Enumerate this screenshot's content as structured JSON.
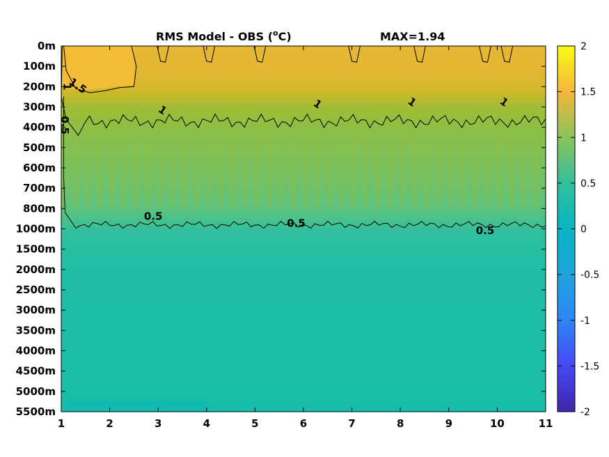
{
  "chart_data": {
    "type": "heatmap",
    "title_left": "RMS Model - OBS (",
    "title_unit_sup": "o",
    "title_unit_c": "C)",
    "title_max": "MAX=1.94",
    "x": [
      1,
      2,
      3,
      4,
      5,
      6,
      7,
      8,
      9,
      10,
      11
    ],
    "xlim": [
      1,
      11
    ],
    "x_tick_labels": [
      "1",
      "2",
      "3",
      "4",
      "5",
      "6",
      "7",
      "8",
      "9",
      "10",
      "11"
    ],
    "y_tick_labels": [
      "0m",
      "100m",
      "200m",
      "300m",
      "400m",
      "500m",
      "600m",
      "700m",
      "800m",
      "1000m",
      "1500m",
      "2000m",
      "2500m",
      "3000m",
      "3500m",
      "4000m",
      "4500m",
      "5000m",
      "5500m"
    ],
    "colorbar": {
      "limits": [
        -2,
        2
      ],
      "ticks": [
        2,
        1.5,
        1,
        0.5,
        0,
        -0.5,
        -1,
        -1.5,
        -2
      ],
      "tick_labels": [
        "2",
        "1.5",
        "1",
        "0.5",
        "0",
        "-0.5",
        "-1",
        "-1.5",
        "-2"
      ],
      "colormap": "parula"
    },
    "depth_profile_rms": [
      {
        "depth": "0m",
        "value": 1.4
      },
      {
        "depth": "100m",
        "value": 1.4
      },
      {
        "depth": "200m",
        "value": 1.3
      },
      {
        "depth": "300m",
        "value": 1.05
      },
      {
        "depth": "400m",
        "value": 0.95
      },
      {
        "depth": "500m",
        "value": 0.9
      },
      {
        "depth": "600m",
        "value": 0.85
      },
      {
        "depth": "700m",
        "value": 0.8
      },
      {
        "depth": "800m",
        "value": 0.7
      },
      {
        "depth": "1000m",
        "value": 0.5
      },
      {
        "depth": "1500m",
        "value": 0.35
      },
      {
        "depth": "2000m",
        "value": 0.3
      },
      {
        "depth": "2500m",
        "value": 0.3
      },
      {
        "depth": "3000m",
        "value": 0.28
      },
      {
        "depth": "3500m",
        "value": 0.28
      },
      {
        "depth": "4000m",
        "value": 0.27
      },
      {
        "depth": "4500m",
        "value": 0.27
      },
      {
        "depth": "5000m",
        "value": 0.25
      },
      {
        "depth": "5500m",
        "value": 0.2
      }
    ],
    "contours": [
      {
        "level": 1.5,
        "label": "1.5"
      },
      {
        "level": 1,
        "label": "1"
      },
      {
        "level": 0.5,
        "label": "0.5"
      }
    ],
    "contour_labels": [
      {
        "text": "1.5",
        "x": 1.3,
        "depth_index": 2.1
      },
      {
        "text": "1",
        "x": 1.05,
        "depth_index": 2.0
      },
      {
        "text": "0.5",
        "x": 1.0,
        "depth_index": 3.9
      },
      {
        "text": "1",
        "x": 3.05,
        "depth_index": 3.3
      },
      {
        "text": "1",
        "x": 6.25,
        "depth_index": 3.0
      },
      {
        "text": "1",
        "x": 8.2,
        "depth_index": 2.9
      },
      {
        "text": "1",
        "x": 10.1,
        "depth_index": 2.9
      },
      {
        "text": "0.5",
        "x": 2.9,
        "depth_index": 8.55
      },
      {
        "text": "0.5",
        "x": 5.85,
        "depth_index": 8.9
      },
      {
        "text": "0.5",
        "x": 9.75,
        "depth_index": 9.25
      }
    ]
  }
}
